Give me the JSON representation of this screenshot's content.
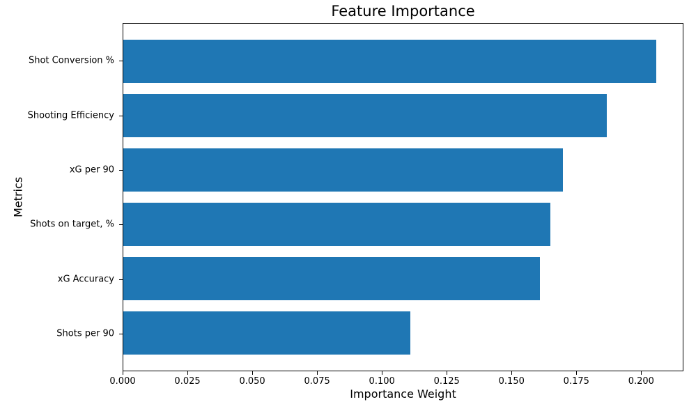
{
  "figure": {
    "background_color": "#ffffff",
    "plot_border_color": "#000000"
  },
  "chart_data": {
    "type": "bar",
    "orientation": "horizontal",
    "title": "Feature Importance",
    "xlabel": "Importance Weight",
    "ylabel": "Metrics",
    "categories": [
      "Shot Conversion %",
      "Shooting Efficiency",
      "xG per 90",
      "Shots on target, %",
      "xG Accuracy",
      "Shots per 90"
    ],
    "values": [
      0.206,
      0.187,
      0.17,
      0.165,
      0.161,
      0.111
    ],
    "bar_color": "#1f77b4",
    "xlim": [
      0,
      0.2163
    ],
    "xticks": [
      0.0,
      0.025,
      0.05,
      0.075,
      0.1,
      0.125,
      0.15,
      0.175,
      0.2
    ],
    "xtick_labels": [
      "0.000",
      "0.025",
      "0.050",
      "0.075",
      "0.100",
      "0.125",
      "0.150",
      "0.175",
      "0.200"
    ],
    "grid": false,
    "legend": null
  }
}
